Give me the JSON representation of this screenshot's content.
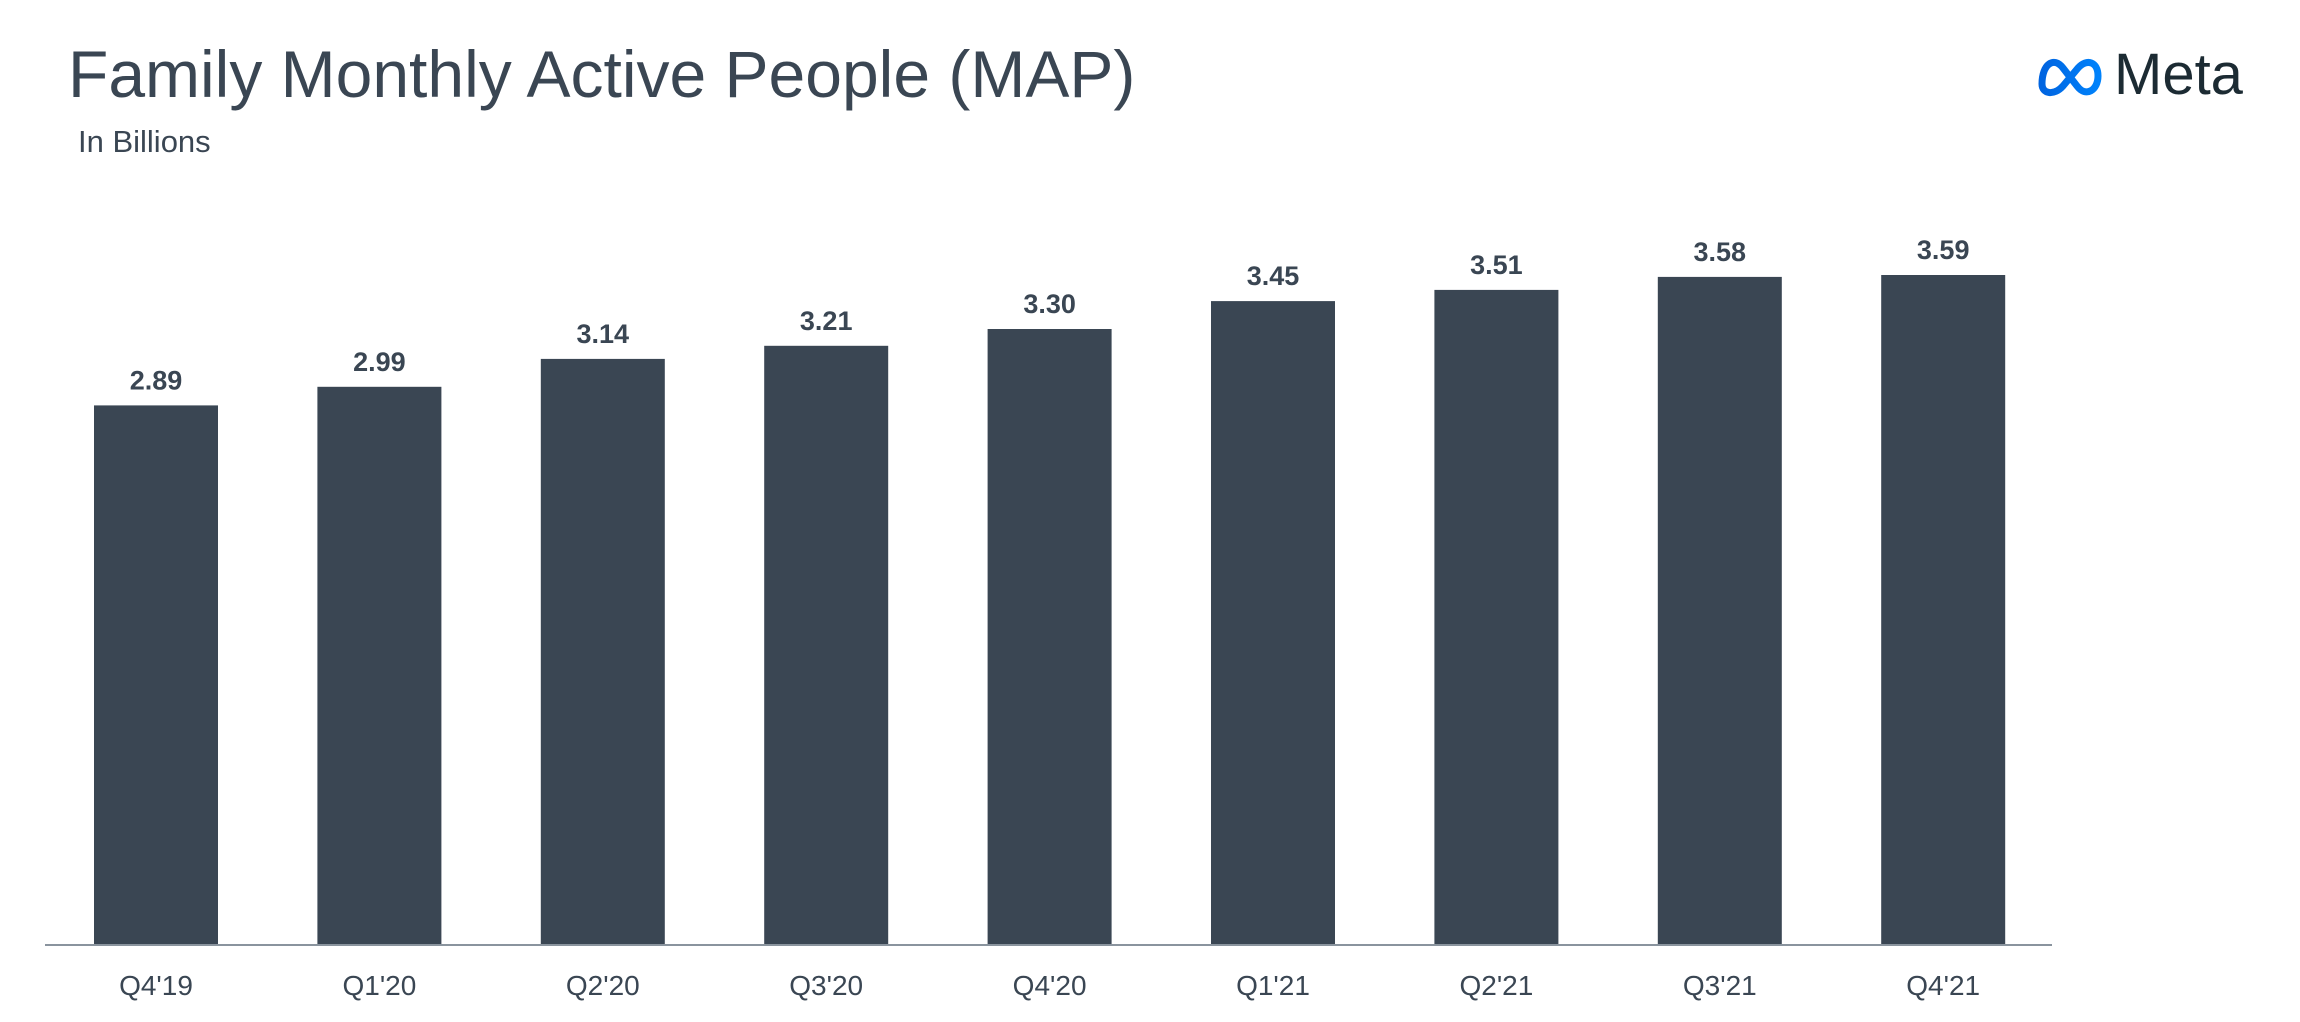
{
  "brand": {
    "logo_icon": "meta-infinity-icon",
    "logo_text": "Meta",
    "logo_gradient": [
      "#0064e0",
      "#0082fb"
    ]
  },
  "chart_data": {
    "type": "bar",
    "title": "Family Monthly Active People (MAP)",
    "subtitle": "In Billions",
    "xlabel": "",
    "ylabel": "",
    "categories": [
      "Q4'19",
      "Q1'20",
      "Q2'20",
      "Q3'20",
      "Q4'20",
      "Q1'21",
      "Q2'21",
      "Q3'21",
      "Q4'21"
    ],
    "values": [
      2.89,
      2.99,
      3.14,
      3.21,
      3.3,
      3.45,
      3.51,
      3.58,
      3.59
    ],
    "data_labels": [
      "2.89",
      "2.99",
      "3.14",
      "3.21",
      "3.30",
      "3.45",
      "3.51",
      "3.58",
      "3.59"
    ],
    "ylim": [
      0,
      3.59
    ],
    "grid": false,
    "legend": "none",
    "bar_color": "#3a4653",
    "axis_color": "#8a949e"
  }
}
